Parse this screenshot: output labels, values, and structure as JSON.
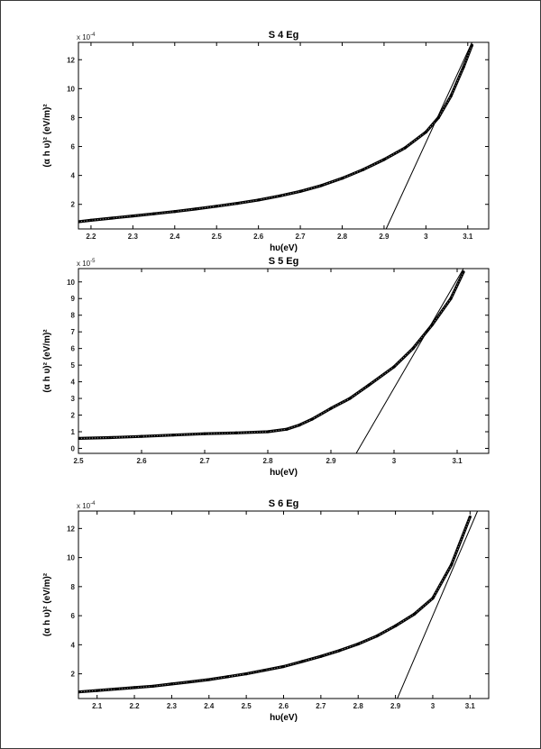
{
  "chart_data": [
    {
      "type": "scatter",
      "title": "S 4 Eg",
      "xlabel": "hυ(eV)",
      "ylabel": "(α h υ)² (eV/m)²",
      "y_exponent_label": "x 10",
      "y_exponent": "-4",
      "xlim": [
        2.17,
        3.15
      ],
      "ylim": [
        0.3,
        13.2
      ],
      "x_ticks": [
        "2.2",
        "2.3",
        "2.4",
        "2.5",
        "2.6",
        "2.7",
        "2.8",
        "2.9",
        "3",
        "3.1"
      ],
      "y_ticks": [
        "2",
        "4",
        "6",
        "8",
        "10",
        "12"
      ],
      "series": [
        {
          "kind": "data",
          "x": [
            2.17,
            2.2,
            2.25,
            2.3,
            2.35,
            2.4,
            2.45,
            2.5,
            2.55,
            2.6,
            2.65,
            2.7,
            2.75,
            2.8,
            2.85,
            2.9,
            2.95,
            3.0,
            3.03,
            3.06,
            3.09,
            3.11
          ],
          "y": [
            0.8,
            0.9,
            1.05,
            1.2,
            1.35,
            1.5,
            1.68,
            1.87,
            2.07,
            2.3,
            2.58,
            2.9,
            3.3,
            3.8,
            4.4,
            5.1,
            5.9,
            7.0,
            8.0,
            9.5,
            11.5,
            13.0
          ]
        },
        {
          "kind": "fit",
          "x": [
            2.905,
            3.11
          ],
          "y": [
            0.3,
            13.2
          ]
        }
      ]
    },
    {
      "type": "scatter",
      "title": "S 5 Eg",
      "xlabel": "hυ(eV)",
      "ylabel": "(α h υ)² (eV/m)²",
      "y_exponent_label": "x 10",
      "y_exponent": "-5",
      "xlim": [
        2.5,
        3.15
      ],
      "ylim": [
        -0.3,
        10.8
      ],
      "x_ticks": [
        "2.5",
        "2.6",
        "2.7",
        "2.8",
        "2.9",
        "3",
        "3.1"
      ],
      "y_ticks": [
        "0",
        "1",
        "2",
        "3",
        "4",
        "5",
        "6",
        "7",
        "8",
        "9",
        "10"
      ],
      "series": [
        {
          "kind": "data",
          "x": [
            2.5,
            2.55,
            2.6,
            2.65,
            2.7,
            2.75,
            2.8,
            2.83,
            2.85,
            2.87,
            2.9,
            2.93,
            2.96,
            3.0,
            3.03,
            3.06,
            3.09,
            3.11
          ],
          "y": [
            0.6,
            0.65,
            0.72,
            0.8,
            0.88,
            0.93,
            1.0,
            1.15,
            1.4,
            1.75,
            2.4,
            3.0,
            3.8,
            4.9,
            6.0,
            7.4,
            9.0,
            10.6
          ]
        },
        {
          "kind": "fit",
          "x": [
            2.94,
            3.11
          ],
          "y": [
            -0.3,
            10.8
          ]
        }
      ]
    },
    {
      "type": "scatter",
      "title": "S 6 Eg",
      "xlabel": "hυ(eV)",
      "ylabel": "(α h υ)² (eV/m)²",
      "y_exponent_label": "x 10",
      "y_exponent": "-4",
      "xlim": [
        2.05,
        3.15
      ],
      "ylim": [
        0.3,
        13.2
      ],
      "x_ticks": [
        "2.1",
        "2.2",
        "2.3",
        "2.4",
        "2.5",
        "2.6",
        "2.7",
        "2.8",
        "2.9",
        "3",
        "3.1"
      ],
      "y_ticks": [
        "2",
        "4",
        "6",
        "8",
        "10",
        "12"
      ],
      "series": [
        {
          "kind": "data",
          "x": [
            2.05,
            2.1,
            2.15,
            2.2,
            2.25,
            2.3,
            2.35,
            2.4,
            2.45,
            2.5,
            2.55,
            2.6,
            2.65,
            2.7,
            2.75,
            2.8,
            2.85,
            2.9,
            2.95,
            3.0,
            3.05,
            3.1
          ],
          "y": [
            0.75,
            0.85,
            0.95,
            1.05,
            1.15,
            1.3,
            1.45,
            1.6,
            1.8,
            2.0,
            2.25,
            2.5,
            2.85,
            3.2,
            3.6,
            4.05,
            4.6,
            5.3,
            6.1,
            7.2,
            9.5,
            12.8
          ]
        },
        {
          "kind": "fit",
          "x": [
            2.905,
            3.12
          ],
          "y": [
            0.3,
            13.2
          ]
        }
      ]
    }
  ]
}
